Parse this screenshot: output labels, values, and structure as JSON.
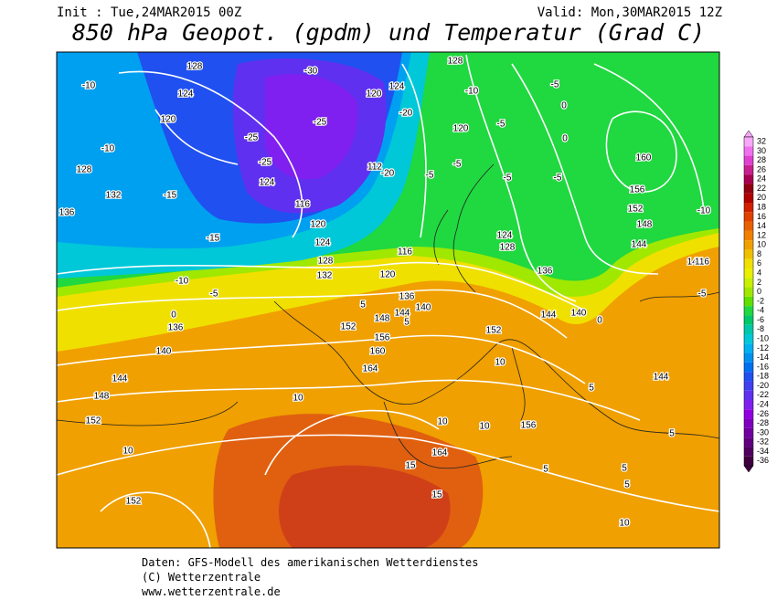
{
  "header": {
    "init": "Init : Tue,24MAR2015 00Z",
    "valid": "Valid: Mon,30MAR2015 12Z",
    "title": "850 hPa Geopot. (gpdm) und Temperatur (Grad C)"
  },
  "colorbar": {
    "levels": [
      32,
      30,
      28,
      26,
      24,
      22,
      20,
      18,
      16,
      14,
      12,
      10,
      8,
      6,
      4,
      2,
      0,
      -2,
      -4,
      -6,
      -8,
      -10,
      -12,
      -14,
      -16,
      -18,
      -20,
      -22,
      -24,
      -26,
      -28,
      -30,
      -32,
      -34,
      -36
    ],
    "colors": [
      "#f8a8f8",
      "#f070f0",
      "#e040d0",
      "#c82090",
      "#a80050",
      "#900010",
      "#b00000",
      "#d02000",
      "#e04000",
      "#e86000",
      "#f08000",
      "#f0a000",
      "#f0c000",
      "#f0e000",
      "#e8f000",
      "#c8f000",
      "#a0e800",
      "#60e000",
      "#20d840",
      "#00c868",
      "#00c8a8",
      "#00c8d8",
      "#00b0f0",
      "#0090f0",
      "#0070f0",
      "#2050f0",
      "#4040f0",
      "#6030f0",
      "#8020f0",
      "#9000e0",
      "#8000c0",
      "#7000a0",
      "#600080",
      "#500060",
      "#400040"
    ]
  },
  "contour_labels": [
    "128",
    "124",
    "120",
    "-10",
    "-10",
    "128",
    "132",
    "136",
    "-15",
    "-15",
    "-10",
    "-5",
    "0",
    "136",
    "140",
    "144",
    "148",
    "152",
    "10",
    "152",
    "10",
    "164",
    "160",
    "156",
    "152",
    "148",
    "132",
    "128",
    "124",
    "120",
    "116",
    "-25",
    "-30",
    "-25",
    "128",
    "-10",
    "-5",
    "0",
    "120",
    "-5",
    "0",
    "160",
    "156",
    "152",
    "148",
    "144",
    "-10",
    "144",
    "140",
    "144",
    "152",
    "136",
    "128",
    "124",
    "116",
    "120",
    "136",
    "140",
    "144",
    "5",
    "5",
    "10",
    "10",
    "10",
    "156",
    "164",
    "15",
    "15",
    "5",
    "5",
    "5",
    "10",
    "144",
    "5",
    "5",
    "-5",
    "0",
    "-5",
    "-5",
    "-5",
    "-5",
    "116",
    "112",
    "-20",
    "124",
    "120",
    "-20",
    "-25",
    "124"
  ],
  "footer": {
    "source": "Daten: GFS-Modell des amerikanischen Wetterdienstes",
    "copyright": "(C) Wetterzentrale",
    "url": "www.wetterzentrale.de"
  }
}
